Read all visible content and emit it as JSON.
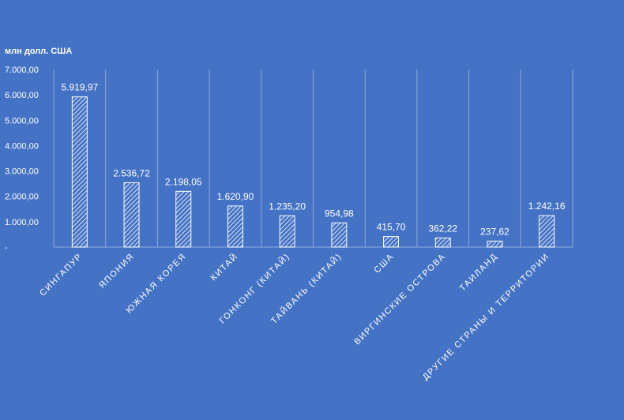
{
  "chart_data": {
    "type": "bar",
    "unit_label": "млн долл. США",
    "categories": [
      "СИНГАПУР",
      "ЯПОНИЯ",
      "ЮЖНАЯ КОРЕЯ",
      "КИТАЙ",
      "ГОНКОНГ (КИТАЙ)",
      "ТАЙВАНЬ (КИТАЙ)",
      "США",
      "ВИРГИНСКИЕ ОСТРОВА",
      "ТАИЛАНД",
      "ДРУГИЕ СТРАНЫ И ТЕРРИТОРИИ"
    ],
    "values": [
      5919.97,
      2536.72,
      2198.05,
      1620.9,
      1235.2,
      954.98,
      415.7,
      362.22,
      237.62,
      1242.16
    ],
    "value_labels": [
      "5.919,97",
      "2.536,72",
      "2.198,05",
      "1.620,90",
      "1.235,20",
      "954,98",
      "415,70",
      "362,22",
      "237,62",
      "1.242,16"
    ],
    "ylim": [
      0,
      7000
    ],
    "yticks": [
      0,
      1000,
      2000,
      3000,
      4000,
      5000,
      6000,
      7000
    ],
    "ytick_labels": [
      "-",
      "1.000,00",
      "2.000,00",
      "3.000,00",
      "4.000,00",
      "5.000,00",
      "6.000,00",
      "7.000,00"
    ],
    "grid": "vertical",
    "bar_pattern": "diagonal-hatch",
    "colors": {
      "background": "#4472C4",
      "bar_fill": "#4472C4",
      "bar_stroke": "#ffffff",
      "text": "#ffffff",
      "grid": "#8ea9db"
    }
  }
}
